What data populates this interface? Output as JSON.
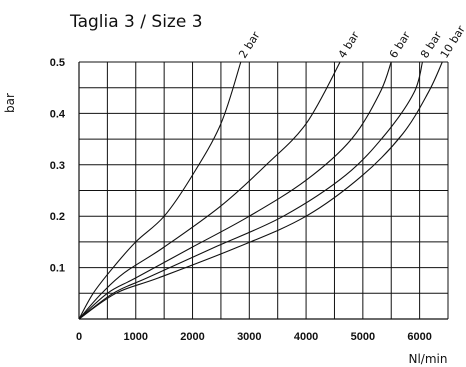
{
  "chart_data": {
    "type": "line",
    "title": "Taglia 3 / Size 3",
    "xlabel": "Nl/min",
    "ylabel": "bar",
    "xlim": [
      0,
      6500
    ],
    "ylim": [
      0,
      0.5
    ],
    "grid": true,
    "x_ticks": [
      "0",
      "1000",
      "2000",
      "3000",
      "4000",
      "5000",
      "6000"
    ],
    "y_ticks": [
      "0.1",
      "0.2",
      "0.3",
      "0.4",
      "0.5"
    ],
    "series": [
      {
        "name": "2 bar",
        "points": [
          [
            0,
            0
          ],
          [
            250,
            0.05
          ],
          [
            600,
            0.1
          ],
          [
            1000,
            0.15
          ],
          [
            1500,
            0.2
          ],
          [
            2000,
            0.28
          ],
          [
            2500,
            0.38
          ],
          [
            2850,
            0.5
          ]
        ]
      },
      {
        "name": "4 bar",
        "points": [
          [
            0,
            0
          ],
          [
            400,
            0.05
          ],
          [
            800,
            0.09
          ],
          [
            1500,
            0.14
          ],
          [
            2500,
            0.22
          ],
          [
            3300,
            0.3
          ],
          [
            4000,
            0.38
          ],
          [
            4600,
            0.5
          ]
        ]
      },
      {
        "name": "6 bar",
        "points": [
          [
            0,
            0
          ],
          [
            500,
            0.05
          ],
          [
            1000,
            0.08
          ],
          [
            2000,
            0.14
          ],
          [
            3000,
            0.2
          ],
          [
            4000,
            0.27
          ],
          [
            4800,
            0.35
          ],
          [
            5300,
            0.44
          ],
          [
            5500,
            0.5
          ]
        ]
      },
      {
        "name": "8 bar",
        "points": [
          [
            0,
            0
          ],
          [
            600,
            0.05
          ],
          [
            1200,
            0.08
          ],
          [
            2400,
            0.14
          ],
          [
            3600,
            0.2
          ],
          [
            4700,
            0.28
          ],
          [
            5400,
            0.36
          ],
          [
            5900,
            0.44
          ],
          [
            6050,
            0.5
          ]
        ]
      },
      {
        "name": "10 bar",
        "points": [
          [
            0,
            0
          ],
          [
            650,
            0.05
          ],
          [
            1400,
            0.08
          ],
          [
            2800,
            0.14
          ],
          [
            4000,
            0.2
          ],
          [
            5000,
            0.28
          ],
          [
            5700,
            0.36
          ],
          [
            6150,
            0.44
          ],
          [
            6400,
            0.5
          ]
        ]
      }
    ]
  }
}
